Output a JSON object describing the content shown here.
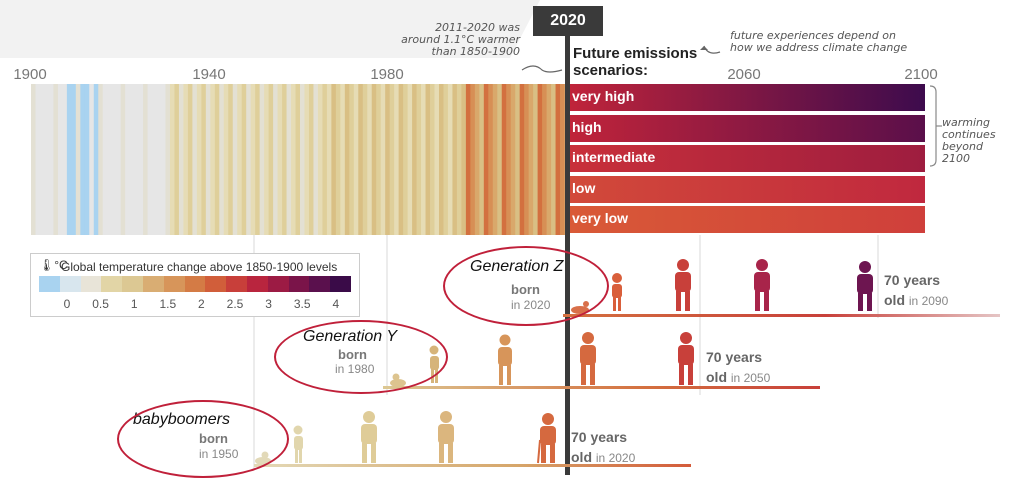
{
  "top_label": "2020",
  "year_ticks": [
    "1900",
    "1940",
    "1980",
    "2060",
    "2100"
  ],
  "notes": {
    "left": [
      "2011-2020 was",
      "around 1.1°C warmer",
      "than 1850-1900"
    ],
    "future": [
      "future experiences depend on",
      "how we address climate change"
    ],
    "right": [
      "warming",
      "continues",
      "beyond",
      "2100"
    ]
  },
  "future_title": [
    "Future emissions",
    "scenarios:"
  ],
  "scenarios": [
    {
      "label": "very high",
      "from": "#c1243a",
      "to": "#3d0b4d"
    },
    {
      "label": "high",
      "from": "#c1243a",
      "to": "#5a0f4a"
    },
    {
      "label": "intermediate",
      "from": "#c9303a",
      "to": "#9e1d3f"
    },
    {
      "label": "low",
      "from": "#d24a3a",
      "to": "#c0283e"
    },
    {
      "label": "very low",
      "from": "#d95a37",
      "to": "#cf3f3b"
    }
  ],
  "legend": {
    "title": "Global temperature change above 1850-1900 levels",
    "unit": "°C",
    "ticks": [
      "0",
      "0.5",
      "1",
      "1.5",
      "2",
      "2.5",
      "3",
      "3.5",
      "4"
    ],
    "colors": [
      "#a9d3f0",
      "#d8e6ee",
      "#e8e4d8",
      "#e2d5a6",
      "#dcc893",
      "#d9ad73",
      "#d7955a",
      "#d47b45",
      "#d15e3a",
      "#c83f3a",
      "#b9253e",
      "#9c1b44",
      "#7a1449",
      "#5a104d",
      "#3a0b48"
    ]
  },
  "generations": [
    {
      "name": "Generation Z",
      "born": "born",
      "year": "in 2020",
      "age": "70 years",
      "old": "old",
      "old_year": "in 2090"
    },
    {
      "name": "Generation Y",
      "born": "born",
      "year": "in 1980",
      "age": "70 years",
      "old": "old",
      "old_year": "in 2050"
    },
    {
      "name": "babyboomers",
      "born": "born",
      "year": "in 1950",
      "age": "70 years",
      "old": "old",
      "old_year": "in 2020"
    }
  ]
}
